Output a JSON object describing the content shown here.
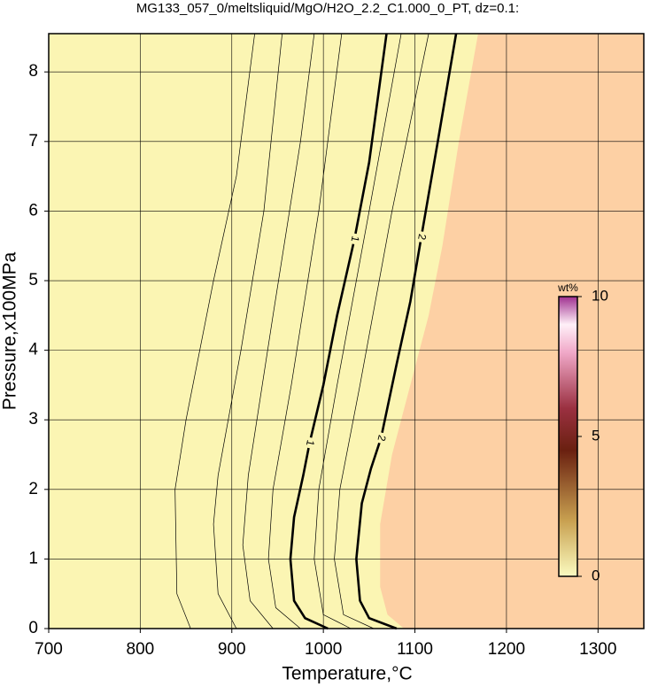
{
  "chart_data": {
    "type": "contour",
    "title": "MG133_057_0/meltsliquid/MgO/H2O_2.2_C1.000_0_PT, dz=0.1:",
    "x_label": "Temperature,°C",
    "y_label": "Pressure,x100MPa",
    "xlim": [
      700,
      1350
    ],
    "ylim": [
      0,
      8.55
    ],
    "xticks": [
      700,
      800,
      900,
      1000,
      1100,
      1200,
      1300
    ],
    "yticks": [
      0,
      1,
      2,
      3,
      4,
      5,
      6,
      7,
      8
    ],
    "grid": true,
    "colors": {
      "low": "#fbf5b3",
      "high": "#fdd0a4",
      "line": "#000000"
    },
    "fill_boundary": {
      "x": [
        1088,
        1070,
        1062,
        1062,
        1075,
        1095,
        1115,
        1130,
        1148,
        1169
      ],
      "y": [
        0,
        0.2,
        0.6,
        1.5,
        2.5,
        3.5,
        4.5,
        5.5,
        7,
        8.55
      ]
    },
    "contours": [
      {
        "level": 0.2,
        "x": [
          855,
          840,
          838,
          850,
          880,
          905,
          925
        ],
        "y": [
          0,
          0.5,
          2,
          3,
          5,
          6.5,
          8.55
        ]
      },
      {
        "level": 0.4,
        "x": [
          905,
          885,
          880,
          885,
          910,
          935,
          955
        ],
        "y": [
          0,
          0.5,
          1.5,
          2.2,
          4,
          6,
          8.55
        ]
      },
      {
        "level": 0.6,
        "x": [
          945,
          920,
          912,
          918,
          945,
          975,
          990
        ],
        "y": [
          0,
          0.4,
          1.2,
          2.2,
          4.5,
          7,
          8.55
        ]
      },
      {
        "level": 0.8,
        "x": [
          975,
          948,
          940,
          945,
          965,
          995,
          1020
        ],
        "y": [
          0,
          0.3,
          1,
          2,
          3.5,
          6,
          8.55
        ]
      },
      {
        "level": 1,
        "label": "1",
        "x": [
          1005,
          980,
          968,
          964,
          968,
          978,
          985,
          1000,
          1015,
          1034,
          1050,
          1069
        ],
        "y": [
          0,
          0.15,
          0.4,
          1,
          1.6,
          2.2,
          2.67,
          3.5,
          4.5,
          5.6,
          6.7,
          8.55
        ]
      },
      {
        "level": 1.3,
        "x": [
          1030,
          1000,
          990,
          995,
          1015,
          1050,
          1085
        ],
        "y": [
          0,
          0.2,
          1,
          2,
          3.5,
          6,
          8.55
        ]
      },
      {
        "level": 1.6,
        "x": [
          1055,
          1022,
          1012,
          1018,
          1040,
          1075,
          1115
        ],
        "y": [
          0,
          0.2,
          1,
          2,
          3.5,
          6,
          8.55
        ]
      },
      {
        "level": 2,
        "label": "2",
        "x": [
          1080,
          1050,
          1040,
          1036,
          1042,
          1052,
          1063,
          1080,
          1095,
          1107,
          1125,
          1145
        ],
        "y": [
          0,
          0.15,
          0.4,
          1,
          1.8,
          2.3,
          2.74,
          3.8,
          4.7,
          5.63,
          7,
          8.55
        ]
      }
    ],
    "colorbar": {
      "label": "wt%",
      "lim": [
        0,
        10
      ],
      "ticks": [
        0,
        5,
        10
      ]
    }
  }
}
